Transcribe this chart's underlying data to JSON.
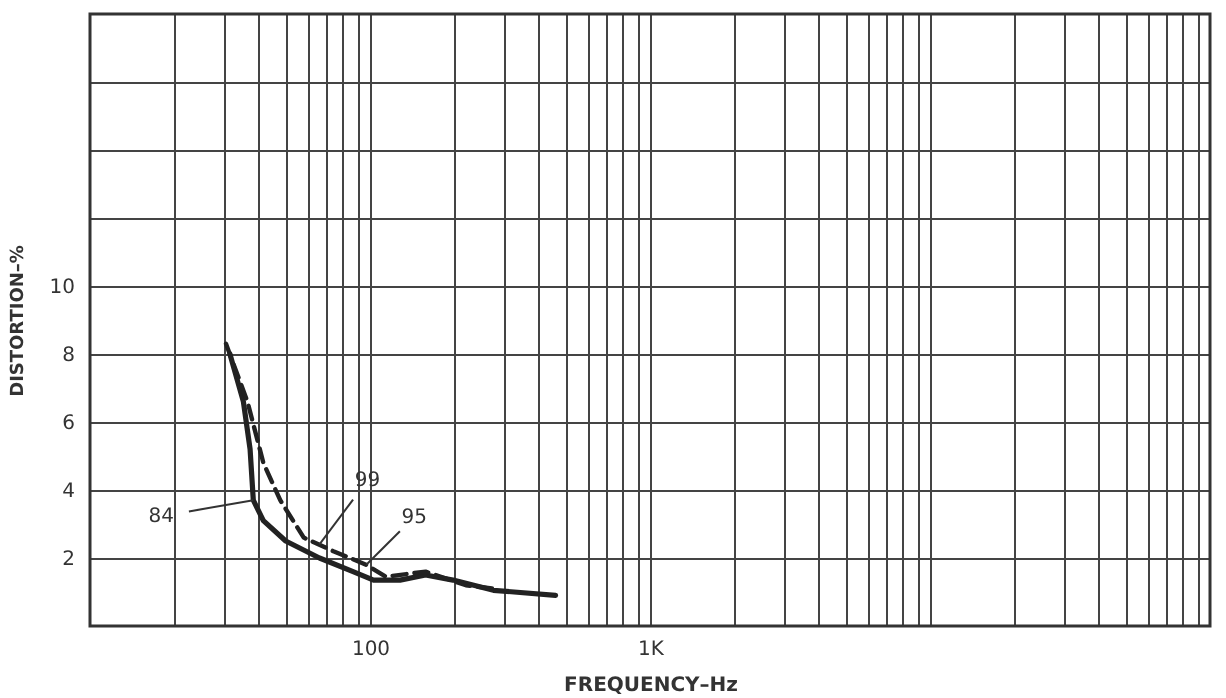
{
  "chart_data": {
    "type": "line",
    "xlabel": "FREQUENCY–Hz",
    "ylabel": "DISTORTION–%",
    "xlim": [
      10,
      100000
    ],
    "ylim": [
      0,
      18
    ],
    "log": "x",
    "grid": true,
    "marker": "none",
    "xticks": [
      {
        "value": 20,
        "label": null
      },
      {
        "value": 30,
        "label": null
      },
      {
        "value": 40,
        "label": null
      },
      {
        "value": 50,
        "label": null
      },
      {
        "value": 60,
        "label": null
      },
      {
        "value": 70,
        "label": null
      },
      {
        "value": 80,
        "label": null
      },
      {
        "value": 90,
        "label": null
      },
      100,
      {
        "value": 200,
        "label": null
      },
      {
        "value": 300,
        "label": null
      },
      {
        "value": 400,
        "label": null
      },
      {
        "value": 500,
        "label": null
      },
      {
        "value": 600,
        "label": null
      },
      {
        "value": 700,
        "label": null
      },
      {
        "value": 800,
        "label": null
      },
      {
        "value": 900,
        "label": null
      },
      {
        "value": 1000,
        "label": "1K"
      },
      {
        "value": 2000,
        "label": null
      },
      {
        "value": 3000,
        "label": null
      },
      {
        "value": 4000,
        "label": null
      },
      {
        "value": 5000,
        "label": null
      },
      {
        "value": 6000,
        "label": null
      },
      {
        "value": 7000,
        "label": null
      },
      {
        "value": 8000,
        "label": null
      },
      {
        "value": 9000,
        "label": null
      },
      {
        "value": 10000,
        "label": null
      },
      {
        "value": 20000,
        "label": null
      },
      {
        "value": 30000,
        "label": null
      },
      {
        "value": 40000,
        "label": null
      },
      {
        "value": 50000,
        "label": null
      },
      {
        "value": 60000,
        "label": null
      },
      {
        "value": 70000,
        "label": null
      },
      {
        "value": 80000,
        "label": null
      },
      {
        "value": 90000,
        "label": null
      }
    ],
    "yticks": [
      2,
      4,
      6,
      8,
      10,
      {
        "value": 12,
        "label": null
      },
      {
        "value": 14,
        "label": null
      },
      {
        "value": 16,
        "label": null
      }
    ],
    "series": [
      {
        "color": "#222222",
        "line_style": "solid",
        "x": [
          31.6,
          35.3,
          37.3,
          38.3,
          41.6,
          50,
          66,
          87,
          103,
          128,
          158,
          198,
          276,
          460
        ],
        "values": [
          8.0,
          6.6,
          5.2,
          3.7,
          3.1,
          2.5,
          2.0,
          1.6,
          1.35,
          1.35,
          1.5,
          1.35,
          1.05,
          0.9
        ]
      },
      {
        "color": "#222222",
        "line_style": "dashed",
        "x": [
          30.6,
          36.5,
          41.6,
          47.8,
          58,
          74,
          97,
          114,
          158,
          220,
          276
        ],
        "values": [
          8.3,
          6.6,
          4.8,
          3.7,
          2.6,
          2.2,
          1.8,
          1.45,
          1.6,
          1.2,
          1.1
        ]
      }
    ],
    "annotations": [
      {
        "text": "84",
        "x": 38.3,
        "y": 3.7
      },
      {
        "text": "99",
        "x": 66,
        "y": 2.4
      },
      {
        "text": "95",
        "x": 97,
        "y": 1.8
      }
    ]
  }
}
